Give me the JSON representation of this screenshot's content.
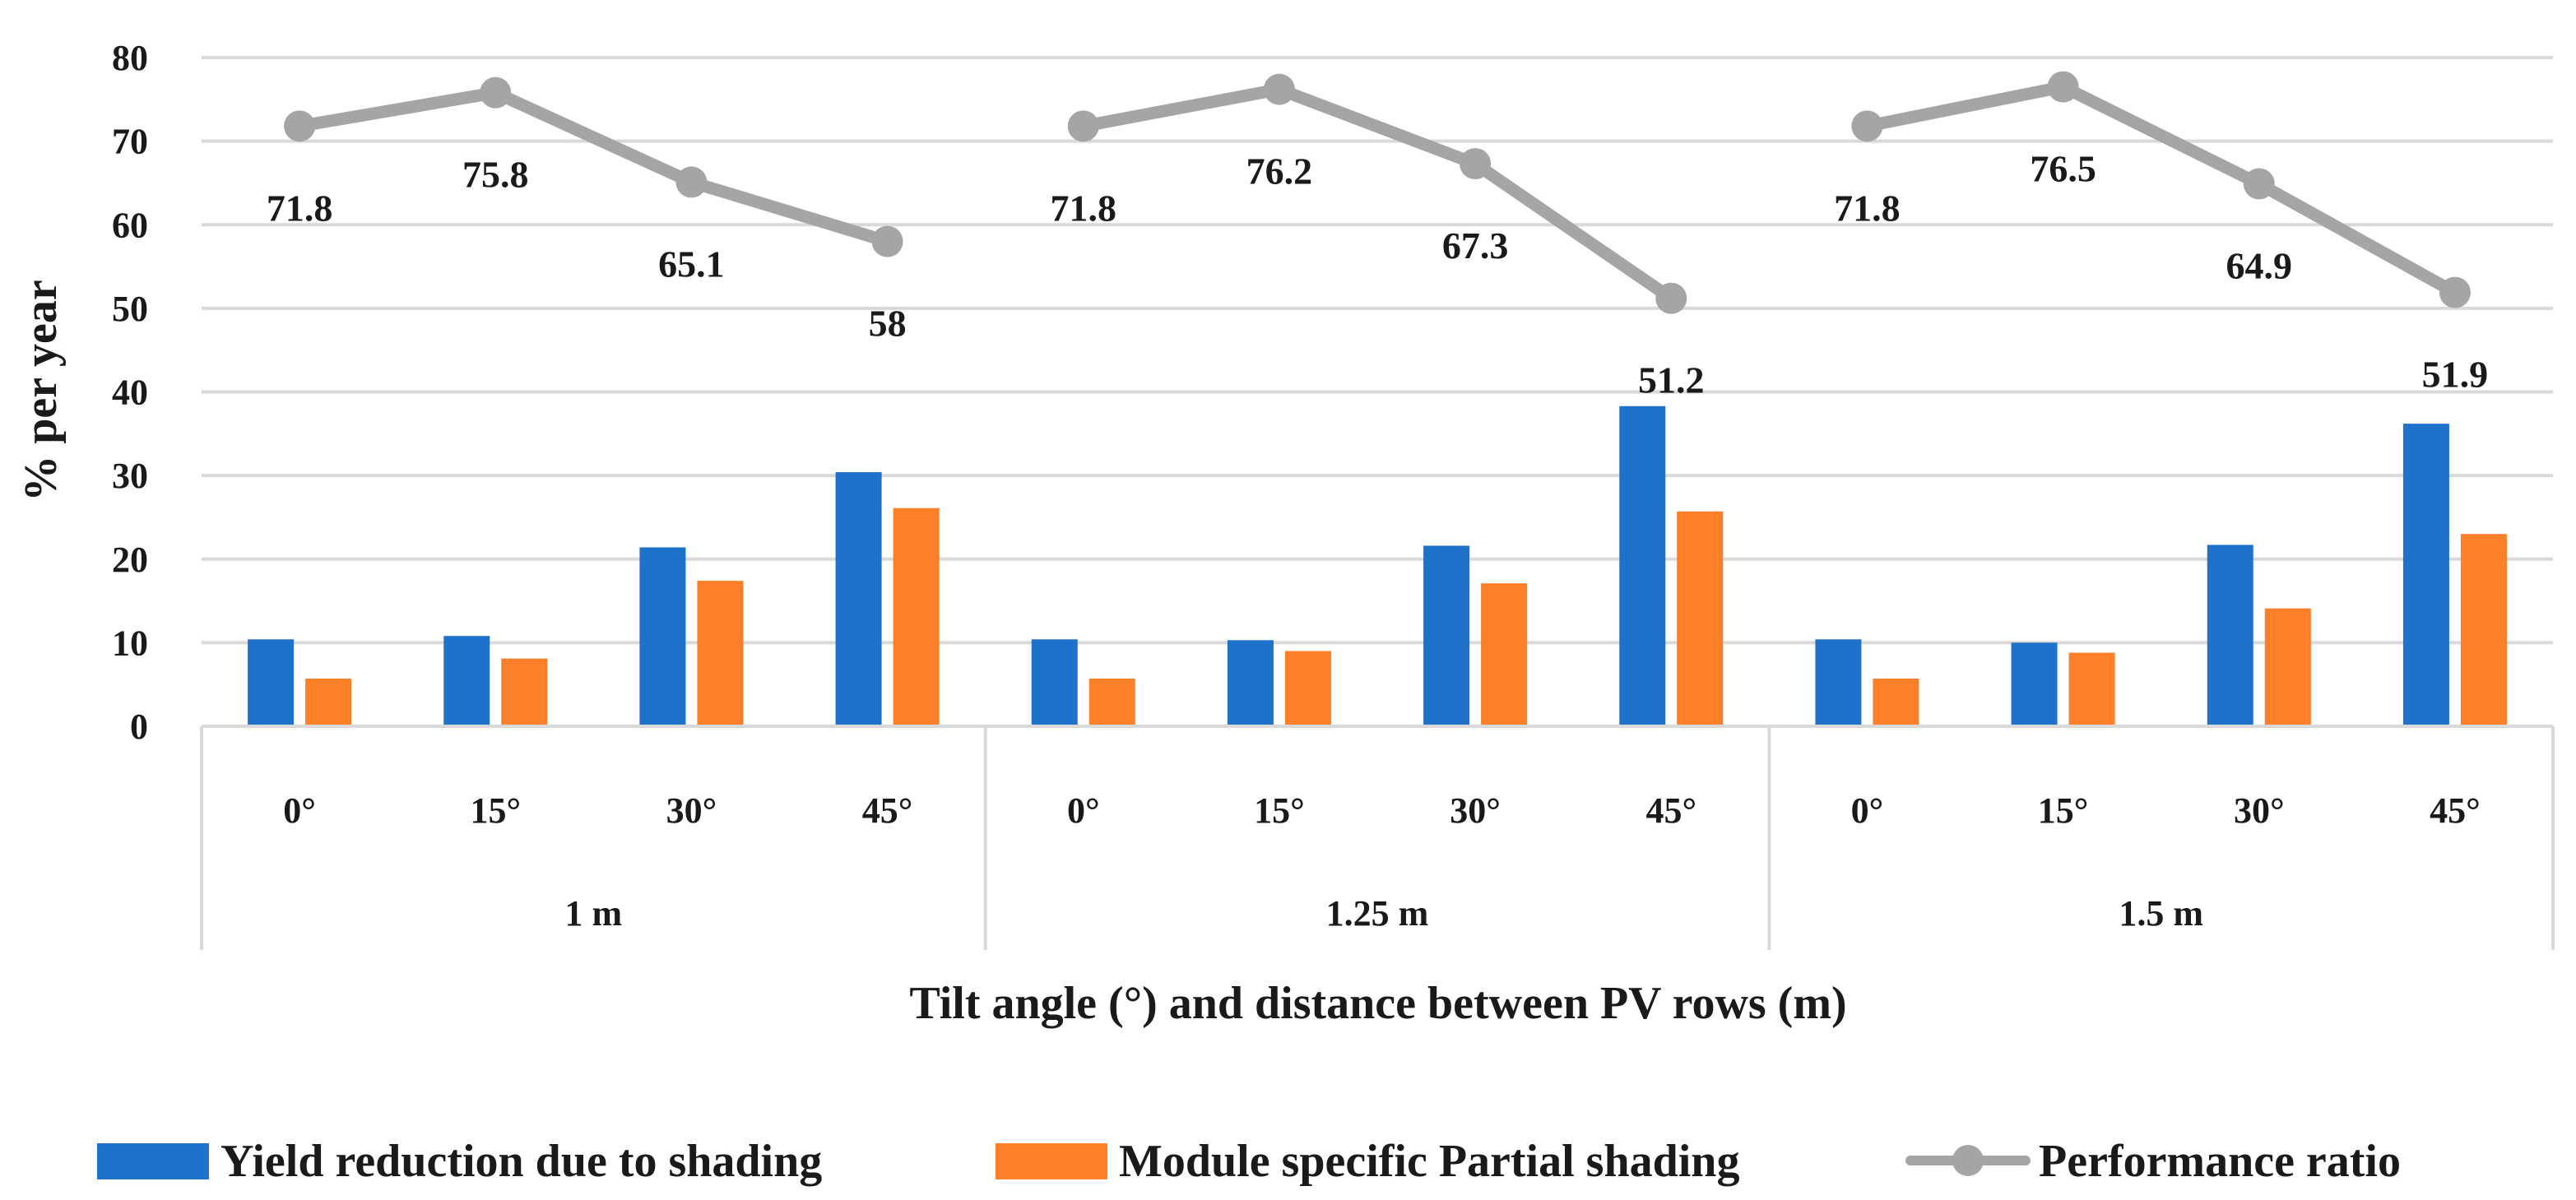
{
  "chart_data": {
    "type": "bar",
    "title": "",
    "xlabel": "Tilt angle (°) and distance between PV rows (m)",
    "ylabel": "% per year",
    "ylim": [
      0,
      80
    ],
    "yticks": [
      "0",
      "10",
      "20",
      "30",
      "40",
      "50",
      "60",
      "70",
      "80"
    ],
    "grid": true,
    "legend_position": "bottom",
    "groups": [
      "1 m",
      "1.25 m",
      "1.5 m"
    ],
    "categories": [
      "0°",
      "15°",
      "30°",
      "45°",
      "0°",
      "15°",
      "30°",
      "45°",
      "0°",
      "15°",
      "30°",
      "45°"
    ],
    "series": [
      {
        "name": "Yield reduction due to shading",
        "kind": "bar",
        "color": "#1f72c9",
        "values": [
          10.4,
          10.8,
          21.4,
          30.4,
          10.4,
          10.3,
          21.6,
          38.3,
          10.4,
          10.0,
          21.7,
          36.2
        ]
      },
      {
        "name": "Module specific Partial shading",
        "kind": "bar",
        "color": "#fd7f28",
        "values": [
          5.7,
          8.1,
          17.4,
          26.1,
          5.7,
          9.0,
          17.1,
          25.7,
          5.7,
          8.8,
          14.1,
          23.0
        ]
      },
      {
        "name": "Performance ratio",
        "kind": "line",
        "color": "#a5a5a5",
        "values": [
          71.8,
          75.8,
          65.1,
          58,
          71.8,
          76.2,
          67.3,
          51.2,
          71.8,
          76.5,
          64.9,
          51.9
        ],
        "labels": [
          "71.8",
          "75.8",
          "65.1",
          "58",
          "71.8",
          "76.2",
          "67.3",
          "51.2",
          "71.8",
          "76.5",
          "64.9",
          "51.9"
        ]
      }
    ]
  }
}
